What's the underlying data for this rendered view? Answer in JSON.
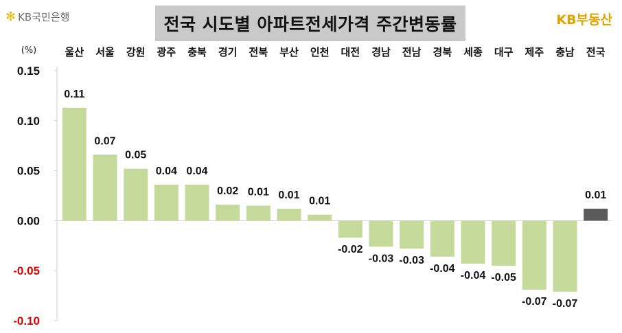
{
  "header": {
    "brand_left": "KB국민은행",
    "brand_left_icon": "kb-star-icon",
    "title": "전국 시도별 아파트전세가격 주간변동률",
    "brand_right": "KB부동산"
  },
  "colors": {
    "bar": "#c5d99b",
    "highlight_bar": "#5a5a5a",
    "negative_tick": "#e00000",
    "title_bg": "#c9c9c9",
    "brand_right": "#e0a400"
  },
  "chart_data": {
    "type": "bar",
    "title": "전국 시도별 아파트전세가격 주간변동률",
    "ylabel": "(%)",
    "xlabel": "",
    "ylim": [
      -0.1,
      0.15
    ],
    "yticks": [
      "0.15",
      "0.10",
      "0.05",
      "0.00",
      "-0.05",
      "-0.10"
    ],
    "ytick_values": [
      0.15,
      0.1,
      0.05,
      0.0,
      -0.05,
      -0.1
    ],
    "categories": [
      "울산",
      "서울",
      "강원",
      "광주",
      "충북",
      "경기",
      "전북",
      "부산",
      "인천",
      "대전",
      "경남",
      "전남",
      "경북",
      "세종",
      "대구",
      "제주",
      "충남",
      "전국"
    ],
    "values": [
      0.113,
      0.066,
      0.052,
      0.036,
      0.036,
      0.016,
      0.015,
      0.012,
      0.006,
      -0.017,
      -0.026,
      -0.028,
      -0.036,
      -0.043,
      -0.045,
      -0.069,
      -0.071,
      0.012
    ],
    "data_labels": [
      "0.11",
      "0.07",
      "0.05",
      "0.04",
      "0.04",
      "0.02",
      "0.01",
      "0.01",
      "0.01",
      "-0.02",
      "-0.03",
      "-0.03",
      "-0.04",
      "-0.04",
      "-0.05",
      "-0.07",
      "-0.07",
      "0.01"
    ],
    "highlight_category": "전국",
    "grid": false,
    "legend": "none"
  }
}
